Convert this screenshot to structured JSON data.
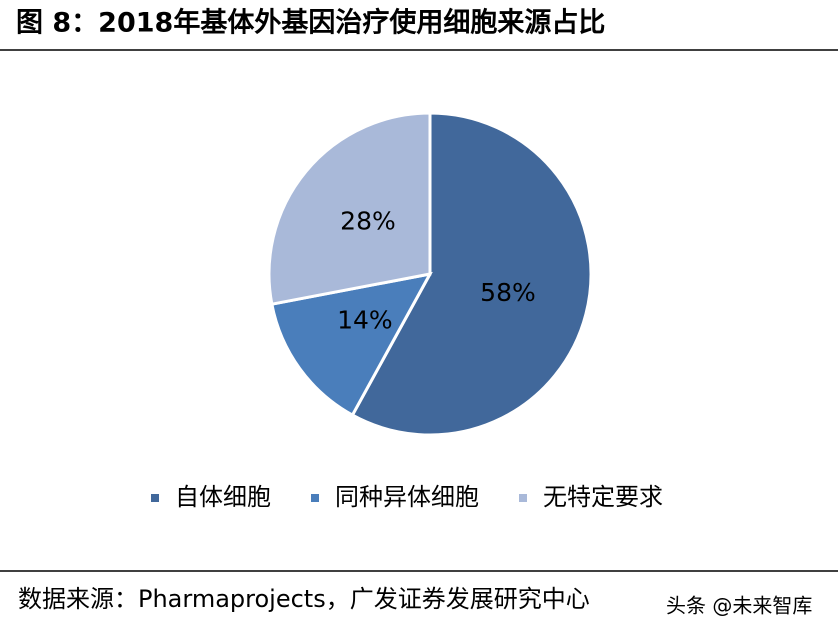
{
  "chart_data": {
    "type": "pie",
    "title": "图 8：2018年基体外基因治疗使用细胞来源占比",
    "categories": [
      "自体细胞",
      "同种异体细胞",
      "无特定要求"
    ],
    "values": [
      58,
      14,
      28
    ],
    "value_labels": [
      "58%",
      "14%",
      "28%"
    ],
    "colors": [
      "#41689b",
      "#4a7ebb",
      "#a9b9d9"
    ],
    "legend": "bottom",
    "source": "数据来源：Pharmaprojects，广发证券发展研究中心",
    "watermark": "头条 @未来智库"
  }
}
